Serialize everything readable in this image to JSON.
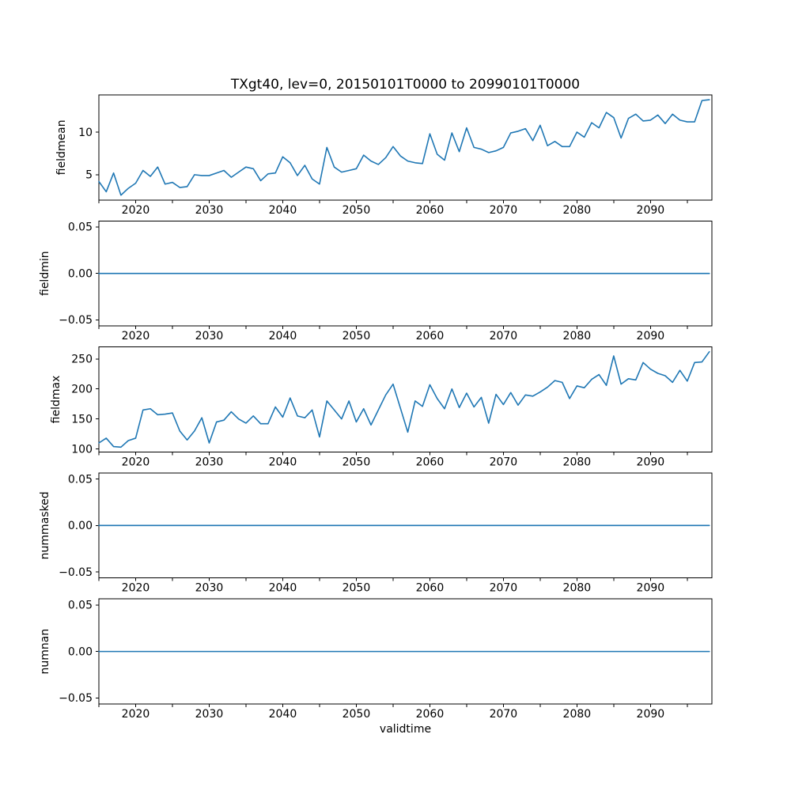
{
  "figure": {
    "title": "TXgt40, lev=0, 20150101T0000 to 20990101T0000",
    "xlabel": "validtime",
    "background_color": "#ffffff",
    "line_color": "#1f77b4",
    "axis_color": "#000000"
  },
  "chart_data": {
    "type": "line",
    "title": "TXgt40, lev=0, 20150101T0000 to 20990101T0000",
    "xlabel": "validtime",
    "grid": false,
    "legend": false,
    "x_start_year": 2015,
    "x_end_year": 2098,
    "x_axis": {
      "xlim": [
        2015,
        2098.35
      ],
      "major_ticks": [
        2020,
        2030,
        2040,
        2050,
        2060,
        2070,
        2080,
        2090
      ],
      "minor_tick_start": 2015,
      "minor_tick_end": 2095,
      "minor_tick_step": 5
    },
    "panels": [
      {
        "name": "fieldmean",
        "ylabel": "fieldmean",
        "ylim": [
          2.04,
          14.36
        ],
        "yticks": [
          {
            "v": 5,
            "label": "5"
          },
          {
            "v": 10,
            "label": "10"
          }
        ],
        "values": [
          4.2,
          3.0,
          5.2,
          2.6,
          3.4,
          4.0,
          5.5,
          4.8,
          5.9,
          3.9,
          4.1,
          3.5,
          3.6,
          5.0,
          4.9,
          4.9,
          5.2,
          5.5,
          4.7,
          5.3,
          5.9,
          5.7,
          4.3,
          5.1,
          5.2,
          7.1,
          6.4,
          4.9,
          6.1,
          4.5,
          3.9,
          8.2,
          5.9,
          5.3,
          5.5,
          5.7,
          7.3,
          6.6,
          6.2,
          7.0,
          8.3,
          7.2,
          6.6,
          6.4,
          6.3,
          9.8,
          7.4,
          6.7,
          9.9,
          7.7,
          10.5,
          8.2,
          8.0,
          7.6,
          7.8,
          8.2,
          9.9,
          10.1,
          10.4,
          9.0,
          10.8,
          8.4,
          8.9,
          8.3,
          8.3,
          10.0,
          9.4,
          11.1,
          10.5,
          12.3,
          11.7,
          9.3,
          11.6,
          12.1,
          11.3,
          11.4,
          12.0,
          11.0,
          12.1,
          11.4,
          11.2,
          11.2,
          13.7,
          13.8
        ]
      },
      {
        "name": "fieldmin",
        "ylabel": "fieldmin",
        "ylim": [
          -0.0565,
          0.0565
        ],
        "yticks": [
          {
            "v": -0.05,
            "label": "−0.05"
          },
          {
            "v": 0,
            "label": "0.00"
          },
          {
            "v": 0.05,
            "label": "0.05"
          }
        ],
        "constant_value": 0
      },
      {
        "name": "fieldmax",
        "ylabel": "fieldmax",
        "ylim": [
          95,
          270
        ],
        "yticks": [
          {
            "v": 100,
            "label": "100"
          },
          {
            "v": 150,
            "label": "150"
          },
          {
            "v": 200,
            "label": "200"
          },
          {
            "v": 250,
            "label": "250"
          }
        ],
        "values": [
          110,
          118,
          104,
          103,
          114,
          118,
          165,
          167,
          157,
          158,
          160,
          130,
          115,
          130,
          152,
          110,
          145,
          148,
          162,
          150,
          143,
          155,
          142,
          142,
          170,
          153,
          185,
          155,
          152,
          165,
          120,
          180,
          165,
          150,
          180,
          145,
          167,
          140,
          165,
          190,
          208,
          168,
          128,
          180,
          171,
          207,
          184,
          167,
          200,
          169,
          193,
          170,
          186,
          143,
          191,
          174,
          194,
          173,
          190,
          188,
          195,
          203,
          214,
          211,
          184,
          205,
          202,
          216,
          224,
          206,
          255,
          208,
          217,
          215,
          244,
          233,
          226,
          222,
          211,
          231,
          213,
          244,
          245,
          262
        ]
      },
      {
        "name": "nummasked",
        "ylabel": "nummasked",
        "ylim": [
          -0.0565,
          0.0565
        ],
        "yticks": [
          {
            "v": -0.05,
            "label": "−0.05"
          },
          {
            "v": 0,
            "label": "0.00"
          },
          {
            "v": 0.05,
            "label": "0.05"
          }
        ],
        "constant_value": 0
      },
      {
        "name": "numnan",
        "ylabel": "numnan",
        "ylim": [
          -0.0565,
          0.0565
        ],
        "yticks": [
          {
            "v": -0.05,
            "label": "−0.05"
          },
          {
            "v": 0,
            "label": "0.00"
          },
          {
            "v": 0.05,
            "label": "0.05"
          }
        ],
        "constant_value": 0
      }
    ]
  }
}
